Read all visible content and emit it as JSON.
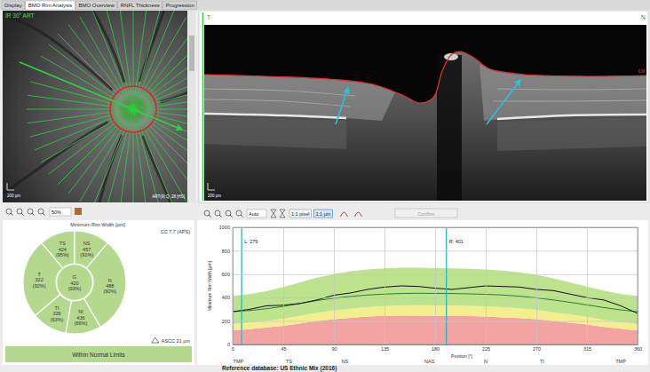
{
  "tabs": [
    {
      "label": "Display",
      "active": false
    },
    {
      "label": "BMO Rim Analysis",
      "active": true
    },
    {
      "label": "BMO Overview",
      "active": false
    },
    {
      "label": "RNFL Thickness",
      "active": false
    },
    {
      "label": "Progression",
      "active": false
    }
  ],
  "fundus": {
    "label": "IR 30° ART",
    "scale_bar": "200 µm",
    "info": "ART(9) Q: 28 [HS]"
  },
  "bscan": {
    "left_label": "T",
    "right_label": "N",
    "layer_label": "ILM",
    "scale_bar": "200 µm"
  },
  "toolbar_left": {
    "zoom": "50%"
  },
  "toolbar_right": {
    "zoom": "Auto",
    "buttons": [
      "1:1 pixel",
      "1:1 µm"
    ],
    "action": "Confirm"
  },
  "sectors": {
    "title": "Minimum Rim Width [µm]",
    "quality": "CC 7.7 (APS)",
    "items": [
      {
        "label": "TS",
        "value": 424,
        "percentile": "(95%)"
      },
      {
        "label": "NS",
        "value": 457,
        "percentile": "(91%)"
      },
      {
        "label": "N",
        "value": 488,
        "percentile": "(90%)"
      },
      {
        "label": "NI",
        "value": 436,
        "percentile": "(66%)"
      },
      {
        "label": "TI",
        "value": 336,
        "percentile": "(63%)"
      },
      {
        "label": "T",
        "value": 322,
        "percentile": "(92%)"
      },
      {
        "label": "G",
        "value": 420,
        "percentile": "(93%)"
      }
    ],
    "ascc": "ASCC 21 µm",
    "classification": "Within Normal Limits"
  },
  "chart_data": {
    "type": "line",
    "xlabel": "Position [°]",
    "ylabel": "Minimum Rim Width [µm]",
    "x": [
      0,
      15,
      30,
      45,
      60,
      75,
      90,
      105,
      120,
      135,
      150,
      165,
      180,
      195,
      210,
      225,
      240,
      255,
      270,
      285,
      300,
      315,
      330,
      345,
      360
    ],
    "xlim": [
      0,
      360
    ],
    "xticks": [
      0,
      45,
      90,
      135,
      180,
      225,
      270,
      315,
      360
    ],
    "ylim": [
      0,
      1000
    ],
    "yticks": [
      0,
      200,
      400,
      600,
      800,
      1000
    ],
    "grid": true,
    "series": [
      {
        "type": "area",
        "color": "#f4a3a3",
        "values": [
          120,
          130,
          145,
          160,
          180,
          200,
          215,
          228,
          238,
          244,
          246,
          246,
          245,
          244,
          242,
          238,
          232,
          225,
          215,
          200,
          185,
          170,
          150,
          135,
          120
        ]
      },
      {
        "type": "area",
        "color": "#f3ef8e",
        "values": [
          175,
          185,
          200,
          220,
          245,
          270,
          290,
          305,
          318,
          328,
          333,
          335,
          334,
          333,
          330,
          325,
          318,
          308,
          295,
          275,
          255,
          235,
          210,
          190,
          175
        ]
      },
      {
        "type": "area",
        "color": "#bde38f",
        "values": [
          415,
          430,
          455,
          490,
          530,
          570,
          600,
          625,
          640,
          650,
          655,
          655,
          652,
          650,
          645,
          640,
          630,
          615,
          595,
          565,
          530,
          495,
          460,
          430,
          415
        ]
      },
      {
        "type": "line",
        "color": "#2e7d32",
        "values": [
          280,
          290,
          305,
          325,
          350,
          375,
          395,
          410,
          422,
          430,
          435,
          437,
          436,
          435,
          432,
          428,
          422,
          412,
          398,
          380,
          360,
          338,
          315,
          295,
          280
        ]
      },
      {
        "type": "line",
        "color": "#111111",
        "values": [
          280,
          300,
          330,
          335,
          350,
          380,
          420,
          440,
          470,
          490,
          500,
          495,
          480,
          470,
          485,
          500,
          495,
          490,
          470,
          460,
          430,
          400,
          380,
          330,
          265
        ]
      }
    ],
    "sector_ticks": [
      {
        "value": 5,
        "label": "TMP"
      },
      {
        "value": 50,
        "label": "TS"
      },
      {
        "value": 100,
        "label": "NS"
      },
      {
        "value": 175,
        "label": "NAS"
      },
      {
        "value": 225,
        "label": "N"
      },
      {
        "value": 275,
        "label": "TI"
      },
      {
        "value": 345,
        "label": "TMP"
      }
    ],
    "markers": [
      {
        "value": 8,
        "label": "L: 279",
        "color": "#22b8cc"
      },
      {
        "value": 190,
        "label": "R: 401",
        "color": "#22b8cc"
      }
    ]
  },
  "footer": "Reference database: US Ethnic Mix (2016)"
}
